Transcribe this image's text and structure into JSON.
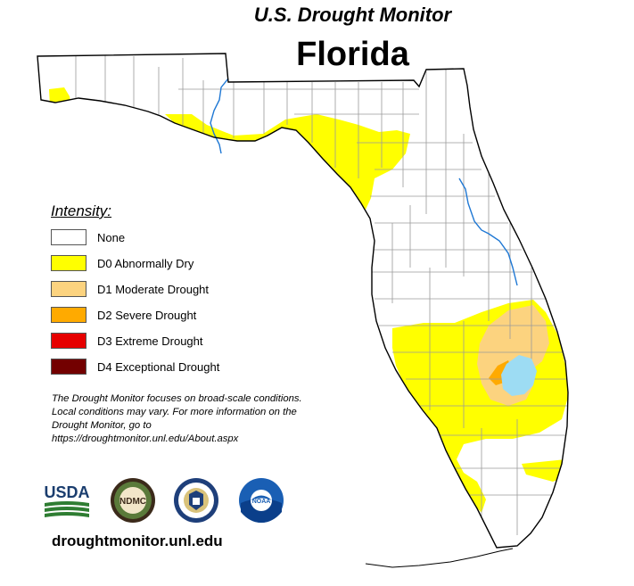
{
  "header": {
    "title": "U.S. Drought Monitor",
    "state": "Florida"
  },
  "legend": {
    "heading": "Intensity:",
    "items": [
      {
        "label": "None",
        "color": "#ffffff"
      },
      {
        "label": "D0 Abnormally Dry",
        "color": "#ffff00"
      },
      {
        "label": "D1 Moderate Drought",
        "color": "#fcd37f"
      },
      {
        "label": "D2 Severe Drought",
        "color": "#ffaa00"
      },
      {
        "label": "D3 Extreme Drought",
        "color": "#e60000"
      },
      {
        "label": "D4 Exceptional Drought",
        "color": "#730000"
      }
    ]
  },
  "note": "The Drought Monitor focuses on broad-scale conditions. Local conditions may vary. For more information on the Drought Monitor, go to https://droughtmonitor.unl.edu/About.aspx",
  "logos": {
    "usda": "USDA",
    "ndmc": "NDMC",
    "doc": "DOC",
    "noaa": "NOAA"
  },
  "footer": {
    "url": "droughtmonitor.unl.edu"
  },
  "map": {
    "water_color": "#9ddcf3",
    "river_color": "#1f78d4",
    "county_line_color": "#9a9a9a",
    "state_outline_color": "#000000"
  }
}
